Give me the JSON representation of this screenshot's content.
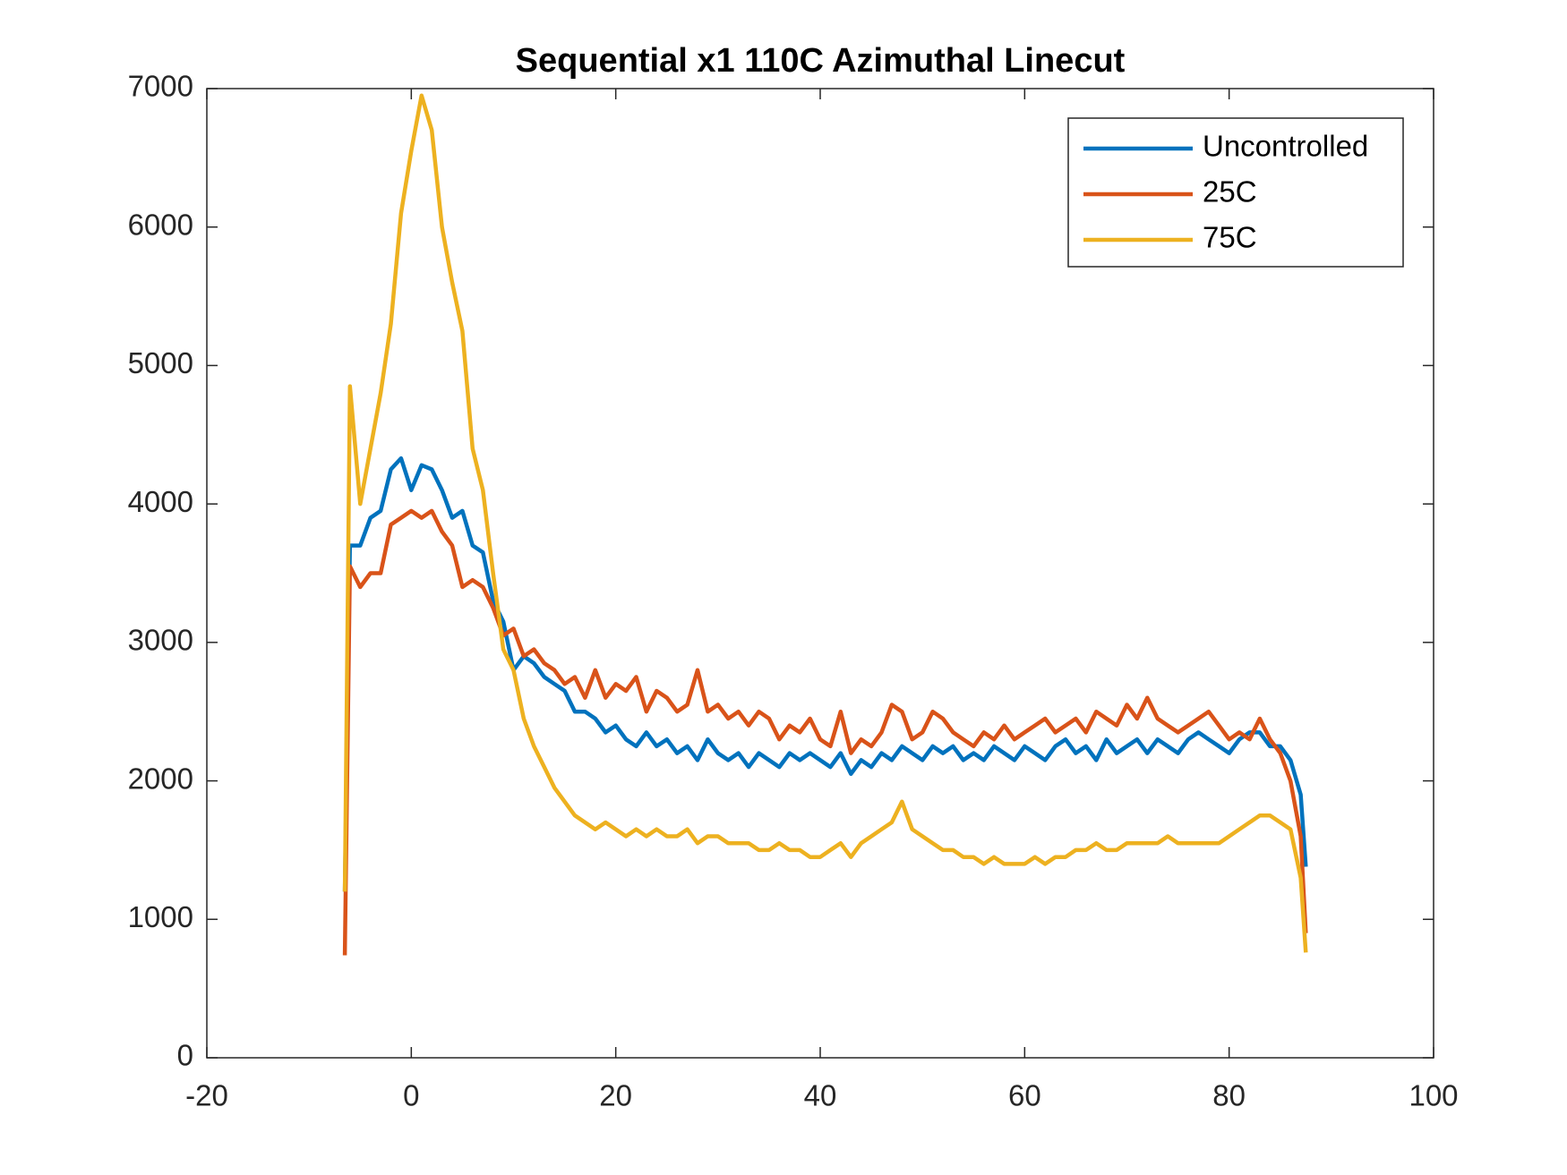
{
  "chart_data": {
    "type": "line",
    "title": "Sequential x1 110C Azimuthal Linecut",
    "x": [
      -6.5,
      -6,
      -5,
      -4,
      -3,
      -2,
      -1,
      0,
      1,
      2,
      3,
      4,
      5,
      6,
      7,
      8,
      9,
      10,
      11,
      12,
      13,
      14,
      15,
      16,
      17,
      18,
      19,
      20,
      21,
      22,
      23,
      24,
      25,
      26,
      27,
      28,
      29,
      30,
      31,
      32,
      33,
      34,
      35,
      36,
      37,
      38,
      39,
      40,
      41,
      42,
      43,
      44,
      45,
      46,
      47,
      48,
      49,
      50,
      51,
      52,
      53,
      54,
      55,
      56,
      57,
      58,
      59,
      60,
      61,
      62,
      63,
      64,
      65,
      66,
      67,
      68,
      69,
      70,
      71,
      72,
      73,
      74,
      75,
      76,
      77,
      78,
      79,
      80,
      81,
      82,
      83,
      84,
      85,
      86,
      87,
      87.5
    ],
    "series": [
      {
        "name": "Uncontrolled",
        "color": "#0072BD",
        "values": [
          1200,
          3700,
          3700,
          3900,
          3950,
          4250,
          4330,
          4100,
          4280,
          4250,
          4100,
          3900,
          3950,
          3700,
          3650,
          3300,
          3150,
          2800,
          2900,
          2850,
          2750,
          2700,
          2650,
          2500,
          2500,
          2450,
          2350,
          2400,
          2300,
          2250,
          2350,
          2250,
          2300,
          2200,
          2250,
          2150,
          2300,
          2200,
          2150,
          2200,
          2100,
          2200,
          2150,
          2100,
          2200,
          2150,
          2200,
          2150,
          2100,
          2200,
          2050,
          2150,
          2100,
          2200,
          2150,
          2250,
          2200,
          2150,
          2250,
          2200,
          2250,
          2150,
          2200,
          2150,
          2250,
          2200,
          2150,
          2250,
          2200,
          2150,
          2250,
          2300,
          2200,
          2250,
          2150,
          2300,
          2200,
          2250,
          2300,
          2200,
          2300,
          2250,
          2200,
          2300,
          2350,
          2300,
          2250,
          2200,
          2300,
          2350,
          2350,
          2250,
          2250,
          2150,
          1900,
          1380
        ]
      },
      {
        "name": "25C",
        "color": "#D95319",
        "values": [
          740,
          3550,
          3400,
          3500,
          3500,
          3850,
          3900,
          3950,
          3900,
          3950,
          3800,
          3700,
          3400,
          3450,
          3400,
          3250,
          3050,
          3100,
          2900,
          2950,
          2850,
          2800,
          2700,
          2750,
          2600,
          2800,
          2600,
          2700,
          2650,
          2750,
          2500,
          2650,
          2600,
          2500,
          2550,
          2800,
          2500,
          2550,
          2450,
          2500,
          2400,
          2500,
          2450,
          2300,
          2400,
          2350,
          2450,
          2300,
          2250,
          2500,
          2200,
          2300,
          2250,
          2350,
          2550,
          2500,
          2300,
          2350,
          2500,
          2450,
          2350,
          2300,
          2250,
          2350,
          2300,
          2400,
          2300,
          2350,
          2400,
          2450,
          2350,
          2400,
          2450,
          2350,
          2500,
          2450,
          2400,
          2550,
          2450,
          2600,
          2450,
          2400,
          2350,
          2400,
          2450,
          2500,
          2400,
          2300,
          2350,
          2300,
          2450,
          2300,
          2200,
          2000,
          1600,
          900
        ]
      },
      {
        "name": "75C",
        "color": "#EDB120",
        "values": [
          1200,
          4850,
          4000,
          4400,
          4800,
          5300,
          6100,
          6550,
          6950,
          6700,
          6000,
          5600,
          5250,
          4400,
          4100,
          3500,
          2950,
          2800,
          2450,
          2250,
          2100,
          1950,
          1850,
          1750,
          1700,
          1650,
          1700,
          1650,
          1600,
          1650,
          1600,
          1650,
          1600,
          1600,
          1650,
          1550,
          1600,
          1600,
          1550,
          1550,
          1550,
          1500,
          1500,
          1550,
          1500,
          1500,
          1450,
          1450,
          1500,
          1550,
          1450,
          1550,
          1600,
          1650,
          1700,
          1850,
          1650,
          1600,
          1550,
          1500,
          1500,
          1450,
          1450,
          1400,
          1450,
          1400,
          1400,
          1400,
          1450,
          1400,
          1450,
          1450,
          1500,
          1500,
          1550,
          1500,
          1500,
          1550,
          1550,
          1550,
          1550,
          1600,
          1550,
          1550,
          1550,
          1550,
          1550,
          1600,
          1650,
          1700,
          1750,
          1750,
          1700,
          1650,
          1300,
          760
        ]
      }
    ],
    "xlim": [
      -20,
      100
    ],
    "xticks": [
      -20,
      0,
      20,
      40,
      60,
      80,
      100
    ],
    "ylim": [
      0,
      7000
    ],
    "yticks": [
      0,
      1000,
      2000,
      3000,
      4000,
      5000,
      6000,
      7000
    ],
    "legend": "upper right"
  }
}
